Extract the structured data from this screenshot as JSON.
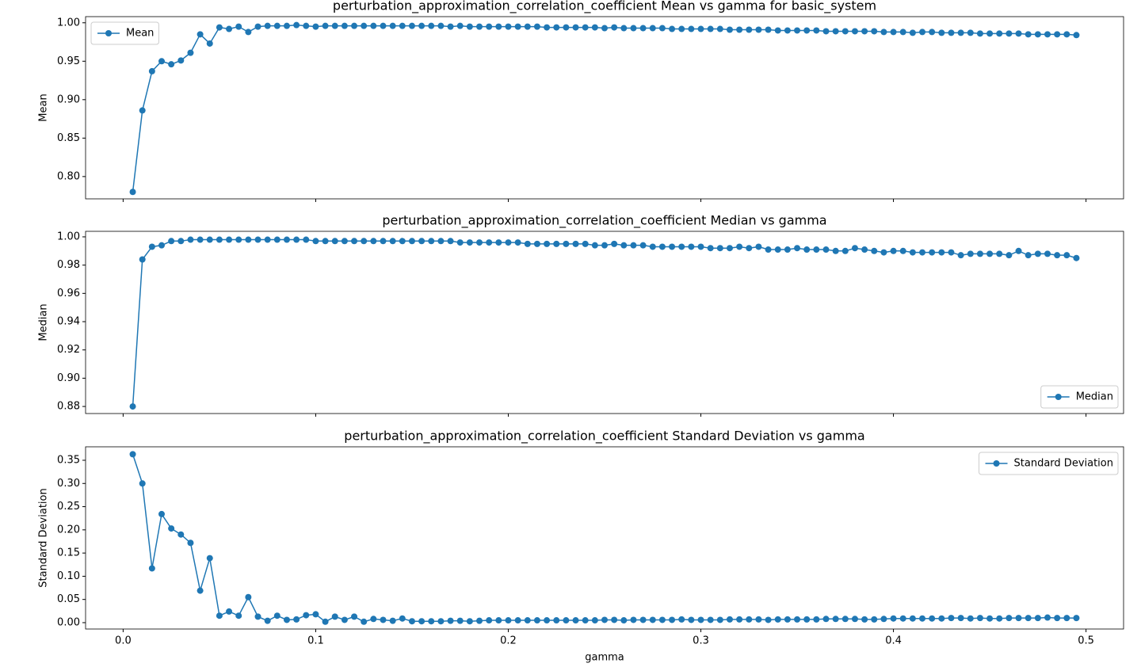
{
  "chart_data": {
    "type": "line",
    "xlabel": "gamma",
    "xlim": [
      -0.0195,
      0.5195
    ],
    "xticks": [
      {
        "value": 0,
        "label": "0.0"
      },
      0.1,
      0.2,
      0.3,
      0.4,
      0.5
    ],
    "x": [
      0.005,
      0.01,
      0.015,
      0.02,
      0.025,
      0.03,
      0.035,
      0.04,
      0.045,
      0.05,
      0.055,
      0.06,
      0.065,
      0.07,
      0.075,
      0.08,
      0.085,
      0.09,
      0.095,
      0.1,
      0.105,
      0.11,
      0.115,
      0.12,
      0.125,
      0.13,
      0.135,
      0.14,
      0.145,
      0.15,
      0.155,
      0.16,
      0.165,
      0.17,
      0.175,
      0.18,
      0.185,
      0.19,
      0.195,
      0.2,
      0.205,
      0.21,
      0.215,
      0.22,
      0.225,
      0.23,
      0.235,
      0.24,
      0.245,
      0.25,
      0.255,
      0.26,
      0.265,
      0.27,
      0.275,
      0.28,
      0.285,
      0.29,
      0.295,
      0.3,
      0.305,
      0.31,
      0.315,
      0.32,
      0.325,
      0.33,
      0.335,
      0.34,
      0.345,
      0.35,
      0.355,
      0.36,
      0.365,
      0.37,
      0.375,
      0.38,
      0.385,
      0.39,
      0.395,
      0.4,
      0.405,
      0.41,
      0.415,
      0.42,
      0.425,
      0.43,
      0.435,
      0.44,
      0.445,
      0.45,
      0.455,
      0.46,
      0.465,
      0.47,
      0.475,
      0.48,
      0.485,
      0.49,
      0.495
    ],
    "panels": [
      {
        "title": "perturbation_approximation_correlation_coefficient Mean vs gamma for basic_system",
        "ylabel": "Mean",
        "ylim": [
          0.771,
          1.008
        ],
        "yticks": [
          {
            "value": 0.8,
            "label": "0.80"
          },
          0.85,
          {
            "value": 0.9,
            "label": "0.90"
          },
          0.95,
          {
            "value": 1,
            "label": "1.00"
          }
        ],
        "legend": "upper left",
        "series": [
          {
            "name": "Mean",
            "color": "#1f77b4",
            "values": [
              0.78,
              0.886,
              0.937,
              0.95,
              0.946,
              0.951,
              0.961,
              0.985,
              0.973,
              0.994,
              0.992,
              0.995,
              0.988,
              0.995,
              0.996,
              0.996,
              0.996,
              0.997,
              0.996,
              0.995,
              0.996,
              0.996,
              0.996,
              0.996,
              0.996,
              0.996,
              0.996,
              0.996,
              0.996,
              0.996,
              0.996,
              0.996,
              0.996,
              0.995,
              0.996,
              0.995,
              0.995,
              0.995,
              0.995,
              0.995,
              0.995,
              0.995,
              0.995,
              0.994,
              0.994,
              0.994,
              0.994,
              0.994,
              0.994,
              0.993,
              0.994,
              0.993,
              0.993,
              0.993,
              0.993,
              0.993,
              0.992,
              0.992,
              0.992,
              0.992,
              0.992,
              0.992,
              0.991,
              0.991,
              0.991,
              0.991,
              0.991,
              0.99,
              0.99,
              0.99,
              0.99,
              0.99,
              0.989,
              0.989,
              0.989,
              0.989,
              0.989,
              0.989,
              0.988,
              0.988,
              0.988,
              0.987,
              0.988,
              0.988,
              0.987,
              0.987,
              0.987,
              0.987,
              0.986,
              0.986,
              0.986,
              0.986,
              0.986,
              0.985,
              0.985,
              0.985,
              0.985,
              0.985,
              0.984
            ]
          }
        ]
      },
      {
        "title": "perturbation_approximation_correlation_coefficient Median vs gamma",
        "ylabel": "Median",
        "ylim": [
          0.875,
          1.0039
        ],
        "yticks": [
          0.88,
          {
            "value": 0.9,
            "label": "0.90"
          },
          0.92,
          0.94,
          0.96,
          0.98,
          {
            "value": 1,
            "label": "1.00"
          }
        ],
        "legend": "lower right",
        "series": [
          {
            "name": "Median",
            "color": "#1f77b4",
            "values": [
              0.88,
              0.984,
              0.993,
              0.994,
              0.997,
              0.997,
              0.998,
              0.998,
              0.998,
              0.998,
              0.998,
              0.998,
              0.998,
              0.998,
              0.998,
              0.998,
              0.998,
              0.998,
              0.998,
              0.997,
              0.997,
              0.997,
              0.997,
              0.997,
              0.997,
              0.997,
              0.997,
              0.997,
              0.997,
              0.997,
              0.997,
              0.997,
              0.997,
              0.997,
              0.996,
              0.996,
              0.996,
              0.996,
              0.996,
              0.996,
              0.996,
              0.995,
              0.995,
              0.995,
              0.995,
              0.995,
              0.995,
              0.995,
              0.994,
              0.994,
              0.995,
              0.994,
              0.994,
              0.994,
              0.993,
              0.993,
              0.993,
              0.993,
              0.993,
              0.993,
              0.992,
              0.992,
              0.992,
              0.993,
              0.992,
              0.993,
              0.991,
              0.991,
              0.991,
              0.992,
              0.991,
              0.991,
              0.991,
              0.99,
              0.99,
              0.992,
              0.991,
              0.99,
              0.989,
              0.99,
              0.99,
              0.989,
              0.989,
              0.989,
              0.989,
              0.989,
              0.987,
              0.988,
              0.988,
              0.988,
              0.988,
              0.987,
              0.99,
              0.987,
              0.988,
              0.988,
              0.987,
              0.987,
              0.985
            ]
          }
        ]
      },
      {
        "title": "perturbation_approximation_correlation_coefficient Standard Deviation vs gamma",
        "ylabel": "Standard Deviation",
        "ylim": [
          -0.0137,
          0.379
        ],
        "yticks": [
          {
            "value": 0,
            "label": "0.00"
          },
          0.05,
          {
            "value": 0.1,
            "label": "0.10"
          },
          0.15,
          {
            "value": 0.2,
            "label": "0.20"
          },
          0.25,
          {
            "value": 0.3,
            "label": "0.30"
          },
          0.35
        ],
        "legend": "upper right",
        "series": [
          {
            "name": "Standard Deviation",
            "color": "#1f77b4",
            "values": [
              0.363,
              0.3,
              0.117,
              0.234,
              0.203,
              0.19,
              0.172,
              0.069,
              0.139,
              0.015,
              0.024,
              0.015,
              0.055,
              0.013,
              0.004,
              0.015,
              0.006,
              0.007,
              0.016,
              0.018,
              0.002,
              0.013,
              0.006,
              0.013,
              0.002,
              0.008,
              0.006,
              0.004,
              0.009,
              0.003,
              0.003,
              0.003,
              0.003,
              0.004,
              0.004,
              0.003,
              0.004,
              0.005,
              0.005,
              0.005,
              0.005,
              0.005,
              0.005,
              0.005,
              0.005,
              0.005,
              0.005,
              0.005,
              0.005,
              0.006,
              0.006,
              0.005,
              0.006,
              0.006,
              0.006,
              0.006,
              0.006,
              0.007,
              0.006,
              0.006,
              0.006,
              0.006,
              0.007,
              0.007,
              0.007,
              0.007,
              0.006,
              0.007,
              0.007,
              0.007,
              0.007,
              0.007,
              0.008,
              0.008,
              0.008,
              0.008,
              0.007,
              0.007,
              0.008,
              0.009,
              0.009,
              0.009,
              0.009,
              0.009,
              0.009,
              0.01,
              0.01,
              0.009,
              0.01,
              0.009,
              0.009,
              0.01,
              0.01,
              0.01,
              0.01,
              0.011,
              0.01,
              0.01,
              0.01
            ]
          }
        ]
      }
    ]
  }
}
